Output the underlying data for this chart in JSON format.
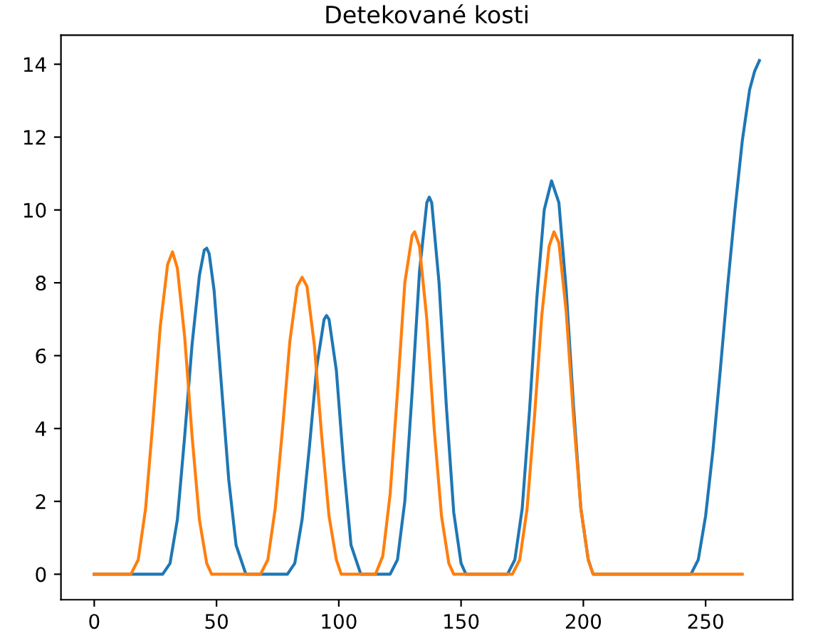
{
  "chart_data": {
    "type": "line",
    "title": "Detekované kosti",
    "series": [
      {
        "color": "#1f77b4",
        "x": [
          0,
          28,
          31,
          34,
          37,
          40,
          43,
          45,
          46,
          47,
          49,
          52,
          55,
          58,
          62,
          79,
          82,
          85,
          88,
          91,
          94,
          95,
          96,
          99,
          102,
          105,
          109,
          121,
          124,
          127,
          130,
          133,
          136,
          137,
          138,
          141,
          144,
          147,
          150,
          152,
          169,
          172,
          175,
          178,
          181,
          184,
          187,
          190,
          193,
          196,
          199,
          202,
          204,
          244,
          247,
          250,
          253,
          256,
          259,
          262,
          265,
          268,
          270,
          272
        ],
        "values": [
          0,
          0,
          0.3,
          1.5,
          3.8,
          6.3,
          8.2,
          8.9,
          8.95,
          8.8,
          7.8,
          5.2,
          2.6,
          0.8,
          0,
          0,
          0.3,
          1.5,
          3.5,
          5.7,
          7.0,
          7.1,
          7.0,
          5.6,
          3.0,
          0.8,
          0,
          0,
          0.4,
          2.0,
          5.0,
          8.3,
          10.2,
          10.35,
          10.2,
          8.0,
          4.6,
          1.7,
          0.3,
          0,
          0,
          0.4,
          1.8,
          4.5,
          7.6,
          10.0,
          10.8,
          10.2,
          7.8,
          4.6,
          1.8,
          0.4,
          0,
          0,
          0.4,
          1.6,
          3.4,
          5.6,
          7.9,
          10.0,
          11.9,
          13.3,
          13.8,
          14.1
        ]
      },
      {
        "color": "#ff7f0e",
        "x": [
          0,
          15,
          18,
          21,
          24,
          27,
          30,
          32,
          34,
          37,
          40,
          43,
          46,
          48,
          68,
          71,
          74,
          77,
          80,
          83,
          85,
          87,
          90,
          93,
          96,
          99,
          101,
          115,
          118,
          121,
          124,
          127,
          130,
          131,
          133,
          136,
          139,
          142,
          145,
          147,
          171,
          174,
          177,
          180,
          183,
          186,
          188,
          190,
          193,
          196,
          199,
          202,
          204,
          265
        ],
        "values": [
          0,
          0,
          0.4,
          1.8,
          4.2,
          6.8,
          8.5,
          8.85,
          8.4,
          6.5,
          3.8,
          1.5,
          0.3,
          0,
          0,
          0.4,
          1.8,
          4.0,
          6.4,
          7.9,
          8.15,
          7.9,
          6.3,
          3.8,
          1.6,
          0.4,
          0,
          0,
          0.5,
          2.2,
          5.0,
          8.0,
          9.3,
          9.4,
          9.0,
          7.0,
          4.0,
          1.6,
          0.3,
          0,
          0,
          0.4,
          1.8,
          4.3,
          7.1,
          9.0,
          9.4,
          9.1,
          7.2,
          4.3,
          1.8,
          0.4,
          0,
          0
        ]
      }
    ],
    "xlim": [
      -13.6,
      285.6
    ],
    "ylim": [
      -0.7,
      14.8
    ],
    "xticks": [
      0,
      50,
      100,
      150,
      200,
      250
    ],
    "yticks": [
      0,
      2,
      4,
      6,
      8,
      10,
      12,
      14
    ]
  }
}
